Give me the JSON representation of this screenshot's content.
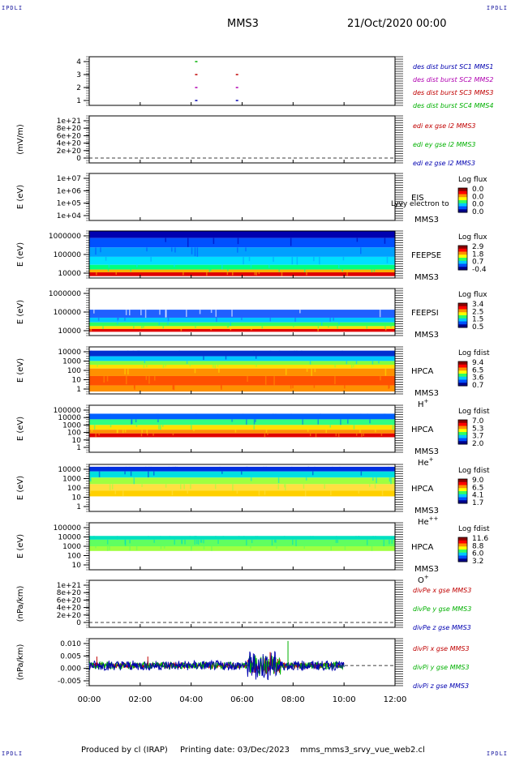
{
  "header": {
    "corner_label": "IPDLI",
    "title": "MMS3",
    "date": "21/Oct/2020 00:00"
  },
  "footer": {
    "produced_by": "Produced by cl (IRAP)",
    "printing_date": "Printing date: 03/Dec/2023",
    "file_name": "mms_mms3_srvy_vue_web2.cl"
  },
  "colors": {
    "red": "#c00000",
    "green": "#00b000",
    "blue": "#0000b0",
    "magenta": "#b000b0",
    "dark_red": "#8b0000",
    "cbar": [
      "#00008b",
      "#0050ff",
      "#00c8ff",
      "#30ff60",
      "#ffff00",
      "#ff9000",
      "#ff0000",
      "#8b0000"
    ]
  },
  "chart_data": {
    "type": "multi-panel time series",
    "x_ticks": [
      "00:00",
      "02:00",
      "04:00",
      "06:00",
      "08:00",
      "10:00",
      "12:00"
    ],
    "x_range_hours": [
      0,
      12
    ],
    "panels": [
      {
        "id": "burst",
        "type": "line",
        "ylabel": "",
        "y_ticks": [
          "4",
          "3",
          "2",
          "1"
        ],
        "legend": [
          {
            "text": "des dist burst SC1 MMS1",
            "color": "#0000b0"
          },
          {
            "text": "des dist burst SC2 MMS2",
            "color": "#b000b0"
          },
          {
            "text": "des dist burst SC3 MMS3",
            "color": "#c00000"
          },
          {
            "text": "des dist burst SC4 MMS4",
            "color": "#00b000"
          }
        ],
        "marks": [
          {
            "sc": 4,
            "hour": 4.2
          },
          {
            "sc": 3,
            "hour": 4.2
          },
          {
            "sc": 2,
            "hour": 4.2
          },
          {
            "sc": 1,
            "hour": 4.2
          },
          {
            "sc": 3,
            "hour": 5.8
          },
          {
            "sc": 2,
            "hour": 5.8
          },
          {
            "sc": 1,
            "hour": 5.8
          }
        ]
      },
      {
        "id": "edi",
        "type": "line",
        "ylabel": "(mV/m)",
        "y_ticks": [
          "1e+21",
          "8e+20",
          "6e+20",
          "4e+20",
          "2e+20",
          "0"
        ],
        "legend": [
          {
            "text": "edi ex gse l2 MMS3",
            "color": "#c00000"
          },
          {
            "text": "edi ey gse l2 MMS3",
            "color": "#00b000"
          },
          {
            "text": "edi ez gse l2 MMS3",
            "color": "#0000b0"
          }
        ]
      },
      {
        "id": "eis",
        "type": "heatmap",
        "ylabel": "E (eV)",
        "y_ticks": [
          "1e+07",
          "1e+06",
          "1e+05",
          "1e+04"
        ],
        "instrument": "EIS",
        "overlay_text": "Lyvy electron to",
        "sc": "MMS3",
        "cbar_title": "Log flux",
        "cbar_ticks": [
          "0.0",
          "0.0",
          "0.0",
          "0.0"
        ]
      },
      {
        "id": "feepse",
        "type": "heatmap",
        "ylabel": "E (eV)",
        "y_ticks": [
          "1000000",
          "100000",
          "10000"
        ],
        "instrument": "FEEPSE",
        "sc": "MMS3",
        "cbar_title": "Log flux",
        "cbar_ticks": [
          "2.9",
          "1.8",
          "0.7",
          "-0.4"
        ]
      },
      {
        "id": "feepsi",
        "type": "heatmap",
        "ylabel": "E (eV)",
        "y_ticks": [
          "1000000",
          "100000",
          "10000"
        ],
        "instrument": "FEEPSI",
        "sc": "MMS3",
        "cbar_title": "Log flux",
        "cbar_ticks": [
          "3.4",
          "2.5",
          "1.5",
          "0.5"
        ]
      },
      {
        "id": "hpca_h",
        "type": "heatmap",
        "ylabel": "E (eV)",
        "y_ticks": [
          "10000",
          "1000",
          "100",
          "10",
          "1"
        ],
        "instrument": "HPCA",
        "sc": "MMS3",
        "species": "H",
        "charge": "+",
        "cbar_title": "Log fdist",
        "cbar_ticks": [
          "9.4",
          "6.5",
          "3.6",
          "0.7"
        ]
      },
      {
        "id": "hpca_he",
        "type": "heatmap",
        "ylabel": "E (eV)",
        "y_ticks": [
          "100000",
          "10000",
          "1000",
          "100",
          "10",
          "1"
        ],
        "instrument": "HPCA",
        "sc": "MMS3",
        "species": "He",
        "charge": "+",
        "cbar_title": "Log fdist",
        "cbar_ticks": [
          "7.0",
          "5.3",
          "3.7",
          "2.0"
        ]
      },
      {
        "id": "hpca_hepp",
        "type": "heatmap",
        "ylabel": "E (eV)",
        "y_ticks": [
          "10000",
          "1000",
          "100",
          "10",
          "1"
        ],
        "instrument": "HPCA",
        "sc": "MMS3",
        "species": "He",
        "charge": "++",
        "cbar_title": "Log fdist",
        "cbar_ticks": [
          "9.0",
          "6.5",
          "4.1",
          "1.7"
        ]
      },
      {
        "id": "hpca_o",
        "type": "heatmap",
        "ylabel": "E (eV)",
        "y_ticks": [
          "100000",
          "10000",
          "1000",
          "100",
          "10"
        ],
        "instrument": "HPCA",
        "sc": "MMS3",
        "species": "O",
        "charge": "+",
        "cbar_title": "Log fdist",
        "cbar_ticks": [
          "11.6",
          "8.8",
          "6.0",
          "3.2"
        ]
      },
      {
        "id": "divpe",
        "type": "line",
        "ylabel": "(nPa/km)",
        "y_ticks": [
          "1e+21",
          "8e+20",
          "6e+20",
          "4e+20",
          "2e+20",
          "0"
        ],
        "legend": [
          {
            "text": "divPe x gse MMS3",
            "color": "#c00000"
          },
          {
            "text": "divPe y gse MMS3",
            "color": "#00b000"
          },
          {
            "text": "divPe z gse MMS3",
            "color": "#0000b0"
          }
        ]
      },
      {
        "id": "divpi",
        "type": "line",
        "ylabel": "(nPa/km)",
        "y_ticks": [
          "0.010",
          "0.005",
          "0.000",
          "-0.005"
        ],
        "y_range": [
          -0.009,
          0.012
        ],
        "legend": [
          {
            "text": "divPi x gse MMS3",
            "color": "#c00000"
          },
          {
            "text": "divPi y gse MMS3",
            "color": "#00b000"
          },
          {
            "text": "divPi z gse MMS3",
            "color": "#0000b0"
          }
        ]
      }
    ]
  }
}
